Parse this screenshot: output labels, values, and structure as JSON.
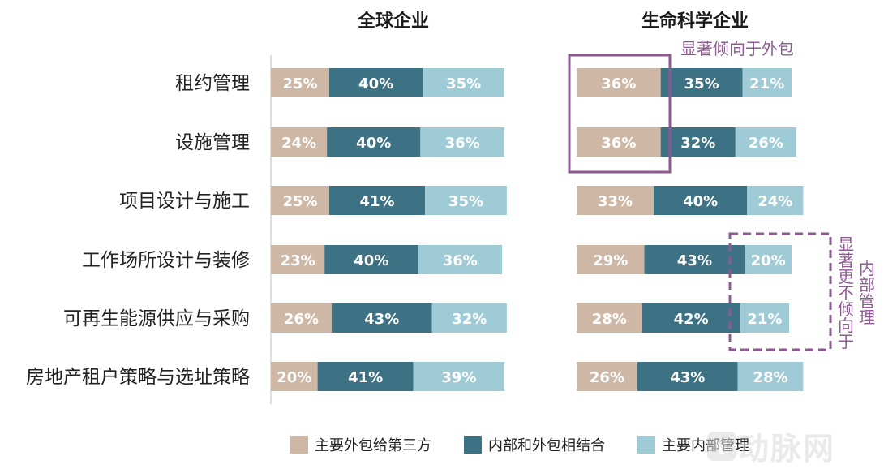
{
  "chart_data": {
    "type": "bar",
    "orientation": "horizontal",
    "stacked": true,
    "categories": [
      "租约管理",
      "设施管理",
      "项目设计与施工",
      "工作场所设计与装修",
      "可再生能源供应与采购",
      "房地产租户策略与选址策略"
    ],
    "series_names": [
      "主要外包给第三方",
      "内部和外包相结合",
      "主要内部管理"
    ],
    "colors": [
      "#CEB7A4",
      "#3D7184",
      "#9FCBD6"
    ],
    "panels": [
      {
        "title": "全球企业",
        "values": [
          [
            25,
            40,
            35
          ],
          [
            24,
            40,
            36
          ],
          [
            25,
            41,
            35
          ],
          [
            23,
            40,
            36
          ],
          [
            26,
            43,
            32
          ],
          [
            20,
            41,
            39
          ]
        ]
      },
      {
        "title": "生命科学企业",
        "values": [
          [
            36,
            35,
            21
          ],
          [
            36,
            32,
            26
          ],
          [
            33,
            40,
            24
          ],
          [
            29,
            43,
            20
          ],
          [
            28,
            42,
            21
          ],
          [
            26,
            43,
            28
          ]
        ]
      }
    ],
    "annotations": {
      "outsource": "显著倾向于外包",
      "internal_col1": "显著更不倾向于",
      "internal_col2": "内部管理"
    }
  },
  "legend": {
    "items": [
      "主要外包给第三方",
      "内部和外包相结合",
      "主要内部管理"
    ]
  },
  "watermark": "动脉网"
}
